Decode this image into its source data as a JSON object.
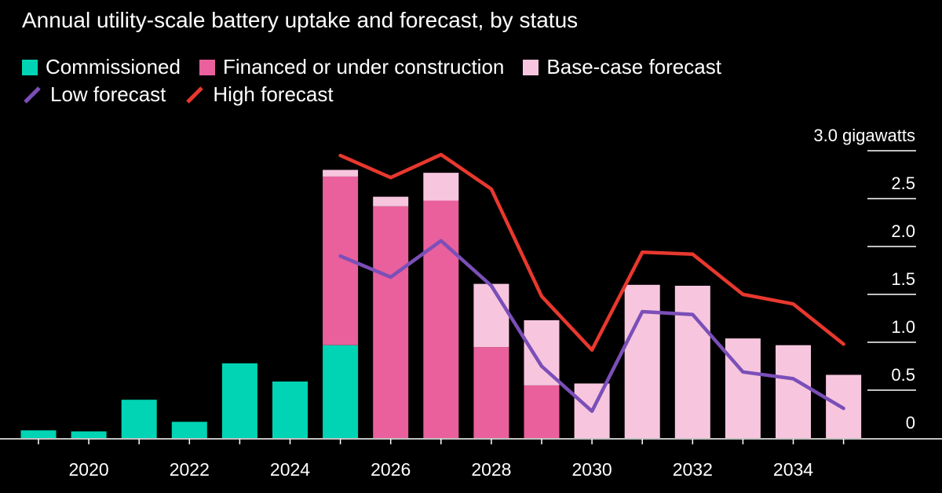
{
  "subtitle": "Annual utility-scale battery uptake and forecast, by status",
  "legend": {
    "commissioned": "Commissioned",
    "financed": "Financed or under construction",
    "base": "Base-case forecast",
    "low": "Low forecast",
    "high": "High forecast"
  },
  "colors": {
    "commissioned": "#00d4b4",
    "financed": "#e9609c",
    "base": "#f7c6de",
    "low": "#7b4fb8",
    "high": "#e8382e",
    "background": "#000000"
  },
  "chart_data": {
    "type": "bar",
    "stacked": true,
    "title": "",
    "subtitle": "Annual utility-scale battery uptake and forecast, by status",
    "x": [
      2019,
      2020,
      2021,
      2022,
      2023,
      2024,
      2025,
      2026,
      2027,
      2028,
      2029,
      2030,
      2031,
      2032,
      2033,
      2034,
      2035
    ],
    "x_tick_labels": [
      "2020",
      "2022",
      "2024",
      "2026",
      "2028",
      "2030",
      "2032",
      "2034"
    ],
    "x_tick_values": [
      2020,
      2022,
      2024,
      2026,
      2028,
      2030,
      2032,
      2034
    ],
    "y_unit_label": "gigawatts",
    "y_tick_labels": [
      "0",
      "0.5",
      "1.0",
      "1.5",
      "2.0",
      "2.5",
      "3.0 gigawatts"
    ],
    "y_tick_values": [
      0,
      0.5,
      1.0,
      1.5,
      2.0,
      2.5,
      3.0
    ],
    "ylim": [
      0,
      3.0
    ],
    "grid": false,
    "legend_position": "top-left",
    "series": [
      {
        "name": "Commissioned",
        "kind": "bar",
        "color_key": "commissioned",
        "values": [
          0.08,
          0.07,
          0.4,
          0.17,
          0.78,
          0.59,
          0.97,
          0,
          0,
          0,
          0,
          0,
          0,
          0,
          0,
          0,
          0
        ]
      },
      {
        "name": "Financed or under construction",
        "kind": "bar",
        "color_key": "financed",
        "values": [
          0,
          0,
          0,
          0,
          0,
          0,
          1.76,
          2.42,
          2.48,
          0.95,
          0.55,
          0,
          0,
          0,
          0,
          0,
          0
        ]
      },
      {
        "name": "Base-case forecast",
        "kind": "bar",
        "color_key": "base",
        "values": [
          0,
          0,
          0,
          0,
          0,
          0,
          0.07,
          0.1,
          0.29,
          0.66,
          0.68,
          0.57,
          1.6,
          1.59,
          1.04,
          0.97,
          0.66
        ]
      },
      {
        "name": "Low forecast",
        "kind": "line",
        "color_key": "low",
        "x": [
          2025,
          2026,
          2027,
          2028,
          2029,
          2030,
          2031,
          2032,
          2033,
          2034,
          2035
        ],
        "values": [
          1.9,
          1.68,
          2.06,
          1.59,
          0.75,
          0.28,
          1.32,
          1.29,
          0.69,
          0.62,
          0.31
        ]
      },
      {
        "name": "High forecast",
        "kind": "line",
        "color_key": "high",
        "x": [
          2025,
          2026,
          2027,
          2028,
          2029,
          2030,
          2031,
          2032,
          2033,
          2034,
          2035
        ],
        "values": [
          2.95,
          2.72,
          2.96,
          2.6,
          1.48,
          0.92,
          1.94,
          1.92,
          1.5,
          1.4,
          0.98
        ]
      }
    ]
  }
}
